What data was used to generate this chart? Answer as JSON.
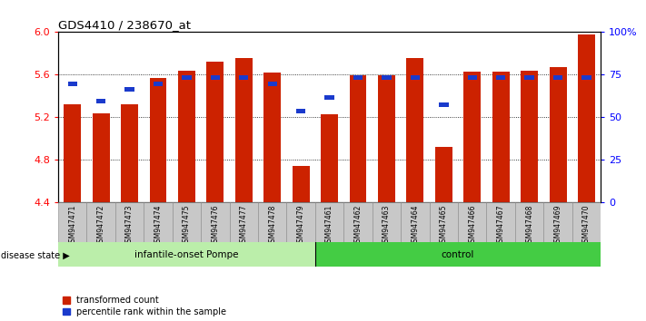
{
  "title": "GDS4410 / 238670_at",
  "samples": [
    "GSM947471",
    "GSM947472",
    "GSM947473",
    "GSM947474",
    "GSM947475",
    "GSM947476",
    "GSM947477",
    "GSM947478",
    "GSM947479",
    "GSM947461",
    "GSM947462",
    "GSM947463",
    "GSM947464",
    "GSM947465",
    "GSM947466",
    "GSM947467",
    "GSM947468",
    "GSM947469",
    "GSM947470"
  ],
  "red_values": [
    5.32,
    5.24,
    5.32,
    5.57,
    5.64,
    5.72,
    5.76,
    5.62,
    4.74,
    5.23,
    5.59,
    5.59,
    5.76,
    4.92,
    5.63,
    5.63,
    5.64,
    5.67,
    5.98
  ],
  "blue_percentiles": [
    68,
    58,
    65,
    68,
    72,
    72,
    72,
    68,
    52,
    60,
    72,
    72,
    72,
    56,
    72,
    72,
    72,
    72,
    72
  ],
  "group1_label": "infantile-onset Pompe",
  "group1_count": 9,
  "group2_label": "control",
  "group2_count": 10,
  "disease_state_label": "disease state",
  "ylim_left": [
    4.4,
    6.0
  ],
  "ylim_right": [
    0,
    100
  ],
  "yticks_left": [
    4.4,
    4.8,
    5.2,
    5.6,
    6.0
  ],
  "yticks_right": [
    0,
    25,
    50,
    75,
    100
  ],
  "bar_color": "#cc2200",
  "blue_color": "#1a3acc",
  "group1_bg": "#bbeeaa",
  "group2_bg": "#44cc44",
  "header_bg": "#c8c8c8",
  "legend_red_label": "transformed count",
  "legend_blue_label": "percentile rank within the sample"
}
